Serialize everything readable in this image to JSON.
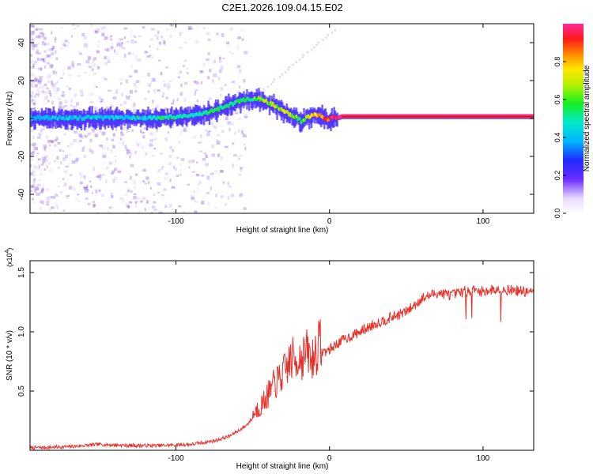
{
  "title": "C2E1.2026.109.04.15.E02",
  "colors": {
    "trace": "#e8302a",
    "spectrum_line": "#cc2200",
    "speckle": "#8a5ee0"
  },
  "chart_data": [
    {
      "type": "heatmap",
      "name": "spectrogram",
      "xlabel": "Height of straight line (km)",
      "ylabel": "Frequency (Hz)",
      "xlim": [
        -195,
        133
      ],
      "ylim": [
        -50,
        50
      ],
      "x_ticks": [
        -100,
        0,
        100
      ],
      "x_tick_labels": [
        "-100",
        "0",
        "100"
      ],
      "y_ticks": [
        -40,
        -20,
        0,
        20,
        40
      ],
      "y_tick_labels": [
        "-40",
        "-20",
        "0",
        "20",
        "40"
      ],
      "colorbar": {
        "label": "Normalized spectral amplitude",
        "range": [
          0,
          1
        ],
        "ticks": [
          0.0,
          0.2,
          0.4,
          0.6,
          0.8
        ],
        "tick_labels": [
          "0.0",
          "0.2",
          "0.4",
          "0.6",
          "0.8"
        ]
      },
      "ridge": {
        "description": "dominant frequency line",
        "x": [
          -195,
          -170,
          -150,
          -130,
          -110,
          -95,
          -85,
          -75,
          -65,
          -58,
          -52,
          -46,
          -40,
          -35,
          -30,
          -26,
          -22,
          -19,
          -16,
          -12,
          -8,
          -5,
          -2,
          3,
          8,
          20,
          60,
          100,
          133
        ],
        "y": [
          0,
          0,
          0,
          0,
          0,
          1,
          2,
          4,
          7,
          9,
          10,
          10,
          8,
          6,
          3,
          2,
          0,
          -2,
          0,
          1,
          2,
          1,
          -1,
          0,
          1,
          1,
          1,
          1,
          1
        ],
        "amplitude": [
          0.35,
          0.35,
          0.4,
          0.4,
          0.45,
          0.45,
          0.45,
          0.5,
          0.5,
          0.5,
          0.5,
          0.55,
          0.6,
          0.62,
          0.65,
          0.6,
          0.55,
          0.55,
          0.6,
          0.7,
          0.75,
          0.8,
          0.85,
          0.92,
          0.95,
          0.97,
          0.98,
          0.98,
          0.98
        ]
      }
    },
    {
      "type": "line",
      "name": "snr",
      "xlabel": "Height of straight line (km)",
      "ylabel": "SNR (10 * v/v)",
      "y_scale_label": "(x10",
      "y_scale_exponent": "4",
      "y_scale_suffix": ")",
      "xlim": [
        -195,
        133
      ],
      "ylim": [
        0,
        1.6
      ],
      "x_ticks": [
        -100,
        0,
        100
      ],
      "x_tick_labels": [
        "-100",
        "0",
        "100"
      ],
      "y_ticks": [
        0.5,
        1.0,
        1.5
      ],
      "y_tick_labels": [
        "0.5",
        "1.0",
        "1.5"
      ],
      "series": [
        {
          "name": "SNR",
          "x": [
            -195,
            -170,
            -150,
            -130,
            -110,
            -90,
            -75,
            -65,
            -55,
            -48,
            -44,
            -40,
            -36,
            -32,
            -28,
            -25,
            -22,
            -20,
            -18,
            -16,
            -14,
            -12,
            -10,
            -6,
            0,
            5,
            10,
            20,
            30,
            40,
            50,
            55,
            60,
            70,
            75,
            80,
            90,
            100,
            110,
            120,
            133
          ],
          "y": [
            0.02,
            0.03,
            0.05,
            0.04,
            0.04,
            0.05,
            0.08,
            0.12,
            0.2,
            0.3,
            0.35,
            0.42,
            0.5,
            0.55,
            0.62,
            0.7,
            0.68,
            0.72,
            0.7,
            0.73,
            0.75,
            0.68,
            0.72,
            0.82,
            0.85,
            0.9,
            0.94,
            1.0,
            1.07,
            1.12,
            1.17,
            1.22,
            1.28,
            1.33,
            1.32,
            1.31,
            1.35,
            1.34,
            1.36,
            1.35,
            1.33
          ]
        }
      ]
    }
  ]
}
